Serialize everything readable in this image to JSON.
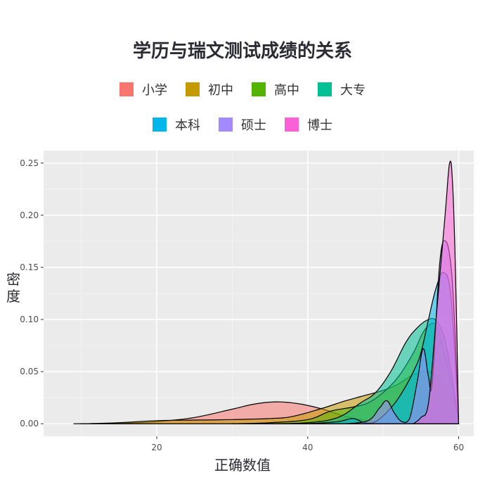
{
  "chart_data": {
    "type": "area",
    "title": "学历与瑞文测试成绩的关系",
    "xlabel": "正确数值",
    "ylabel": "密度",
    "xlim": [
      5,
      62
    ],
    "ylim": [
      -0.012,
      0.262
    ],
    "x_ticks": [
      20,
      40,
      60
    ],
    "y_ticks": [
      0.0,
      0.05,
      0.1,
      0.15,
      0.2,
      0.25
    ],
    "y_tick_labels": [
      "0.00",
      "0.05",
      "0.10",
      "0.15",
      "0.20",
      "0.25"
    ],
    "grid": true,
    "legend_position": "top",
    "series": [
      {
        "name": "小学",
        "color": "#F8766D",
        "points": [
          [
            9,
            0
          ],
          [
            15,
            0.0005
          ],
          [
            20,
            0.002
          ],
          [
            25,
            0.006
          ],
          [
            30,
            0.014
          ],
          [
            33,
            0.019
          ],
          [
            36,
            0.021
          ],
          [
            39,
            0.019
          ],
          [
            42,
            0.014
          ],
          [
            45,
            0.007
          ],
          [
            48,
            0.003
          ],
          [
            50,
            0.0015
          ],
          [
            53,
            0.0005
          ],
          [
            56,
            0.0002
          ],
          [
            58,
            0.0001
          ],
          [
            60,
            0
          ]
        ]
      },
      {
        "name": "初中",
        "color": "#C49A00",
        "points": [
          [
            10,
            0
          ],
          [
            15,
            0.001
          ],
          [
            20,
            0.003
          ],
          [
            25,
            0.0035
          ],
          [
            30,
            0.004
          ],
          [
            35,
            0.005
          ],
          [
            38,
            0.007
          ],
          [
            42,
            0.015
          ],
          [
            45,
            0.022
          ],
          [
            48,
            0.028
          ],
          [
            50,
            0.032
          ],
          [
            52,
            0.038
          ],
          [
            54,
            0.047
          ],
          [
            56,
            0.05
          ],
          [
            58,
            0.04
          ],
          [
            59.5,
            0.02
          ],
          [
            60,
            0
          ]
        ]
      },
      {
        "name": "高中",
        "color": "#53B400",
        "points": [
          [
            30,
            0
          ],
          [
            35,
            0.001
          ],
          [
            40,
            0.004
          ],
          [
            43,
            0.012
          ],
          [
            46,
            0.016
          ],
          [
            48,
            0.02
          ],
          [
            50,
            0.03
          ],
          [
            52,
            0.045
          ],
          [
            54,
            0.068
          ],
          [
            55.5,
            0.09
          ],
          [
            57,
            0.095
          ],
          [
            58,
            0.07
          ],
          [
            59,
            0.04
          ],
          [
            60,
            0
          ]
        ]
      },
      {
        "name": "大专",
        "color": "#00C094",
        "points": [
          [
            35,
            0
          ],
          [
            40,
            0.001
          ],
          [
            44,
            0.006
          ],
          [
            47,
            0.02
          ],
          [
            49,
            0.03
          ],
          [
            51,
            0.05
          ],
          [
            53,
            0.078
          ],
          [
            54.5,
            0.092
          ],
          [
            56,
            0.1
          ],
          [
            57,
            0.099
          ],
          [
            58,
            0.085
          ],
          [
            59,
            0.05
          ],
          [
            60,
            0
          ]
        ]
      },
      {
        "name": "本科",
        "color": "#00B6EB",
        "points": [
          [
            40,
            0
          ],
          [
            44,
            0.002
          ],
          [
            46,
            0.005
          ],
          [
            47.5,
            0.001
          ],
          [
            49,
            0.002
          ],
          [
            51,
            0.015
          ],
          [
            52.5,
            0.03
          ],
          [
            54,
            0.05
          ],
          [
            55,
            0.068
          ],
          [
            56,
            0.1
          ],
          [
            57,
            0.13
          ],
          [
            58,
            0.145
          ],
          [
            59,
            0.12
          ],
          [
            60,
            0
          ]
        ]
      },
      {
        "name": "硕士",
        "color": "#A58AFF",
        "points": [
          [
            45,
            0
          ],
          [
            48,
            0.003
          ],
          [
            49.5,
            0.015
          ],
          [
            50.5,
            0.022
          ],
          [
            51.5,
            0.01
          ],
          [
            52.5,
            0.002
          ],
          [
            53.5,
            0.005
          ],
          [
            54.5,
            0.04
          ],
          [
            55.3,
            0.072
          ],
          [
            56,
            0.045
          ],
          [
            56.5,
            0.04
          ],
          [
            57.5,
            0.155
          ],
          [
            58.3,
            0.175
          ],
          [
            59,
            0.15
          ],
          [
            59.5,
            0.09
          ],
          [
            60,
            0
          ]
        ]
      },
      {
        "name": "博士",
        "color": "#FB61D7",
        "points": [
          [
            54,
            0
          ],
          [
            55,
            0.006
          ],
          [
            56,
            0.02
          ],
          [
            57,
            0.1
          ],
          [
            58.2,
            0.2
          ],
          [
            58.8,
            0.25
          ],
          [
            59.2,
            0.23
          ],
          [
            59.6,
            0.14
          ],
          [
            60,
            0
          ]
        ]
      }
    ]
  }
}
